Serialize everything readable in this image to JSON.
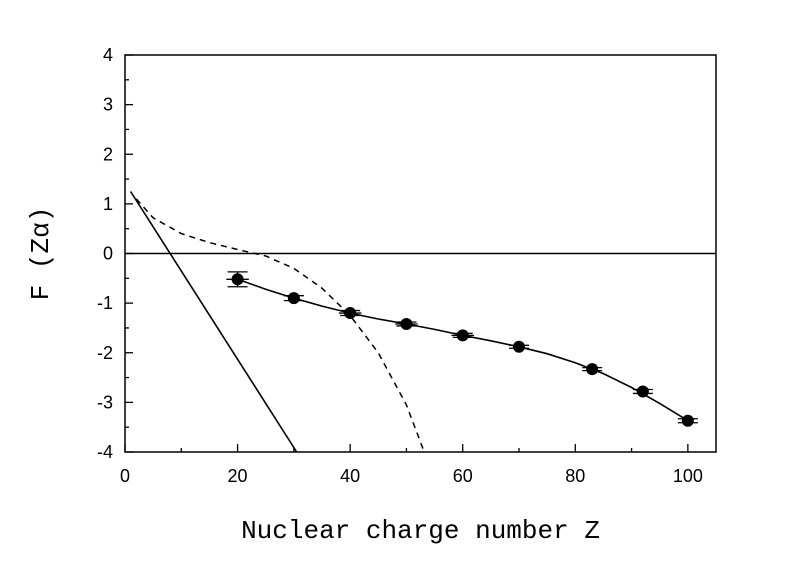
{
  "chart_data": {
    "type": "scatter",
    "title": "",
    "xlabel": "Nuclear charge number Z",
    "ylabel": "F (Zα)",
    "xlim": [
      0,
      105
    ],
    "ylim": [
      -4,
      4
    ],
    "xticks": [
      0,
      20,
      40,
      60,
      80,
      100
    ],
    "yticks": [
      -4,
      -3,
      -2,
      -1,
      0,
      1,
      2,
      3,
      4
    ],
    "xtick_labels": [
      "0",
      "20",
      "40",
      "60",
      "80",
      100
    ],
    "ytick_labels": [
      "-4",
      "-3",
      "-2",
      "-1",
      "0",
      "1",
      "2",
      "3",
      "4"
    ],
    "grid": false,
    "legend": "none",
    "reference_line": {
      "y": 0
    },
    "series": [
      {
        "style": "markers-with-errorbars",
        "x": [
          20,
          30,
          40,
          50,
          60,
          70,
          83,
          92,
          100
        ],
        "y": [
          -0.52,
          -0.9,
          -1.2,
          -1.42,
          -1.65,
          -1.88,
          -2.33,
          -2.78,
          -3.37
        ],
        "xerr": [
          2.0,
          0.8,
          2.0,
          2.0,
          2.0,
          0,
          0,
          0,
          0
        ],
        "yerr": [
          0.15,
          0.05,
          0.05,
          0.04,
          0.04,
          0.03,
          0.03,
          0.04,
          0.04
        ]
      },
      {
        "style": "solid-fit-curve",
        "x": [
          20,
          25,
          30,
          35,
          40,
          45,
          50,
          55,
          60,
          65,
          70,
          75,
          80,
          85,
          90,
          95,
          100
        ],
        "y": [
          -0.52,
          -0.72,
          -0.9,
          -1.06,
          -1.2,
          -1.32,
          -1.42,
          -1.53,
          -1.65,
          -1.76,
          -1.88,
          -2.02,
          -2.2,
          -2.42,
          -2.7,
          -3.02,
          -3.37
        ]
      },
      {
        "style": "solid-line",
        "x": [
          1,
          30.5
        ],
        "y": [
          1.25,
          -4.0
        ]
      },
      {
        "style": "dashed-curve",
        "x": [
          2,
          5,
          10,
          15,
          20,
          25,
          30,
          35,
          40,
          45,
          50,
          53
        ],
        "y": [
          1.1,
          0.72,
          0.4,
          0.22,
          0.08,
          -0.05,
          -0.3,
          -0.7,
          -1.25,
          -2.0,
          -3.05,
          -3.95
        ]
      }
    ]
  }
}
